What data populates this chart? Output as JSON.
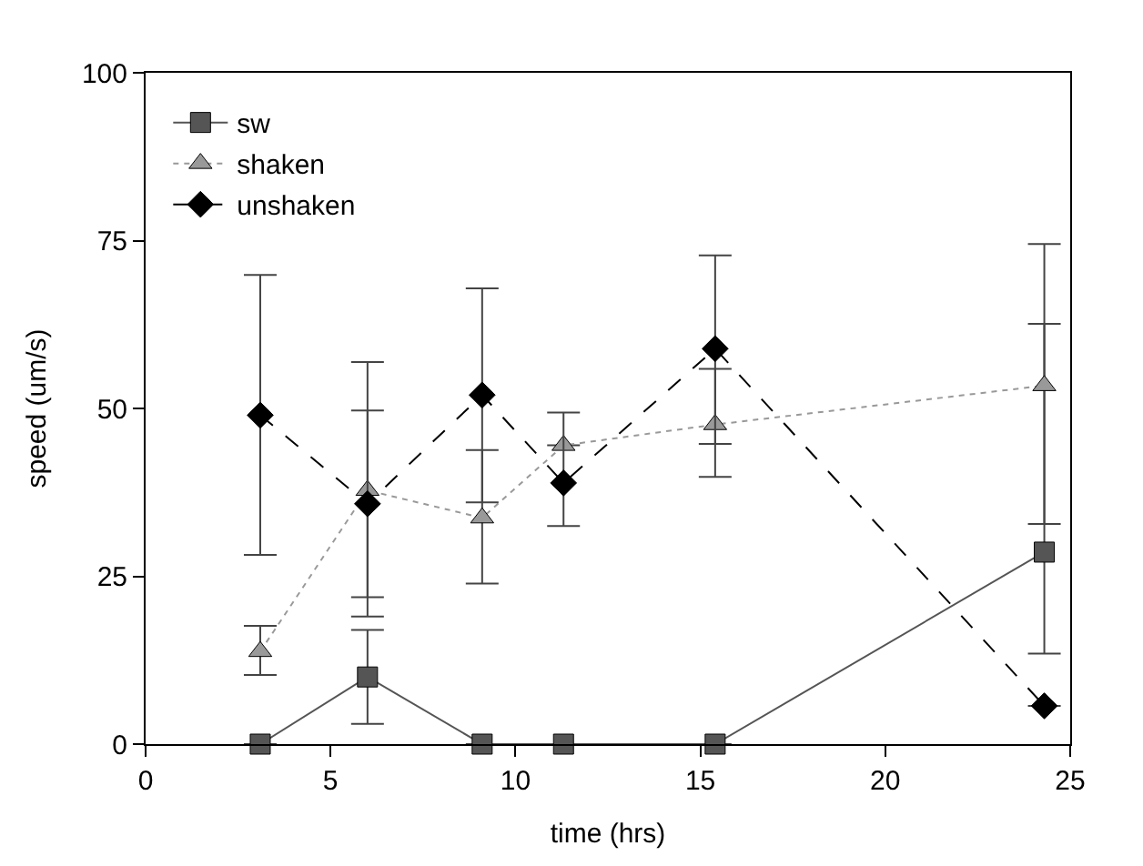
{
  "chart_data": {
    "type": "line",
    "xlabel": "time (hrs)",
    "ylabel": "speed (um/s)",
    "x": [
      3.1,
      6,
      9.1,
      11.3,
      15.4,
      24.3
    ],
    "xlim": [
      0,
      25
    ],
    "xticks": [
      0,
      5,
      10,
      15,
      20,
      25
    ],
    "ylim": [
      0,
      100
    ],
    "yticks": [
      0,
      25,
      50,
      75,
      100
    ],
    "legend": "top left",
    "series": [
      {
        "name": "sw",
        "color": "#555555",
        "marker": "square",
        "line_style": "solid",
        "values": [
          0,
          10,
          0,
          0,
          0,
          28.6
        ],
        "errors": [
          null,
          [
            3,
            17
          ],
          null,
          null,
          null,
          [
            13.5,
            62.6
          ]
        ]
      },
      {
        "name": "shaken",
        "color": "#999999",
        "marker": "triangle",
        "line_style": "dotted",
        "values": [
          13.8,
          37.8,
          33.7,
          44.5,
          47.6,
          53.4
        ],
        "errors": [
          [
            10.3,
            17.6
          ],
          [
            21.9,
            49.7
          ],
          [
            23.9,
            43.8
          ],
          null,
          [
            39.8,
            55.9
          ],
          [
            32.8,
            74.5
          ]
        ]
      },
      {
        "name": "unshaken",
        "color": "#000000",
        "marker": "diamond",
        "line_style": "dashed",
        "values": [
          49,
          35.8,
          52,
          38.9,
          58.9,
          5.7
        ],
        "errors": [
          [
            28.2,
            69.9
          ],
          [
            19,
            56.9
          ],
          [
            36,
            67.9
          ],
          [
            32.5,
            49.4
          ],
          [
            44.7,
            72.8
          ],
          null
        ]
      }
    ]
  }
}
